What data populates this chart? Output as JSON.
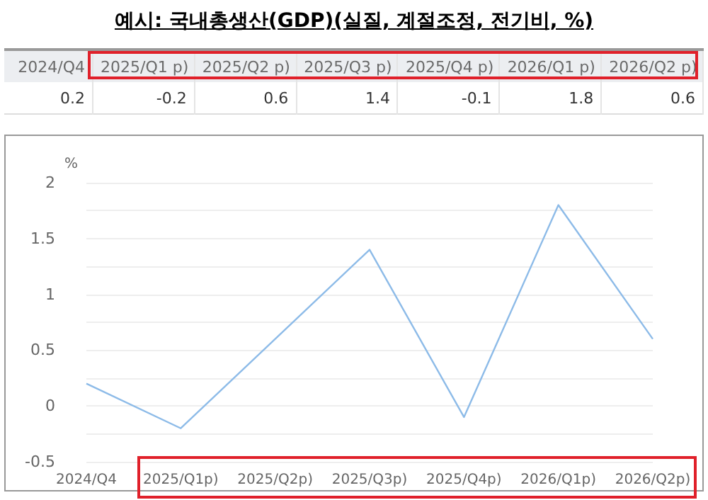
{
  "chart_data": {
    "type": "line",
    "title": "예시: 국내총생산(GDP)(실질, 계절조정, 전기비, %)",
    "ylabel": "%",
    "annotations": [
      "2024/Q4",
      "2025/Q1 p)",
      "2025/Q2 p)",
      "2025/Q3 p)",
      "2025/Q4 p)",
      "2026/Q1 p)",
      "2026/Q2 p)"
    ],
    "categories": [
      "2024/Q4",
      "2025/Q1p)",
      "2025/Q2p)",
      "2025/Q3p)",
      "2025/Q4p)",
      "2026/Q1p)",
      "2026/Q2p)"
    ],
    "series": [
      {
        "color": "#8dbbe8",
        "values": [
          0.2,
          -0.2,
          0.6,
          1.4,
          -0.1,
          1.8,
          0.6
        ]
      }
    ],
    "data_labels": true,
    "ylim": [
      -0.5,
      2
    ],
    "yticks": [
      -0.5,
      {
        "value": -0.25,
        "label": null
      },
      0,
      {
        "value": 0.25,
        "label": null
      },
      0.5,
      {
        "value": 0.75,
        "label": null
      },
      1,
      {
        "value": 1.25,
        "label": null
      },
      1.5,
      {
        "value": 1.75,
        "label": null
      },
      2
    ],
    "grid": "y",
    "marker": "none",
    "line_style": "solid"
  }
}
